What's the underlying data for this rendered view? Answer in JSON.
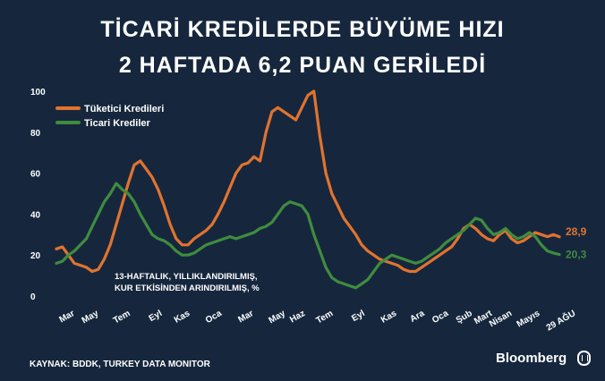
{
  "header": {
    "title_line1": "TİCARİ KREDİLERDE BÜYÜME HIZI",
    "title_line2": "2 HAFTADA 6,2 PUAN GERİLEDİ"
  },
  "footer": {
    "source": "KAYNAK: BDDK, TURKEY DATA MONITOR",
    "brand": "Bloomberg",
    "brand_seal": "HT"
  },
  "colors": {
    "background": "#16273d",
    "consumer": "#e1732e",
    "commercial": "#3f8c3f",
    "text": "#ffffff"
  },
  "chart_data": {
    "type": "line",
    "note": "13-HAFTALIK, YILLIKLANDIRILMIŞ,\nKUR ETKİSİNDEN ARINDIRILMIŞ, %",
    "ylim": [
      0,
      100
    ],
    "yticks": [
      0,
      20,
      40,
      60,
      80,
      100
    ],
    "xticks": [
      {
        "label": "Mar",
        "x": 2
      },
      {
        "label": "May",
        "x": 8
      },
      {
        "label": "Tem",
        "x": 16
      },
      {
        "label": "Eyl",
        "x": 24
      },
      {
        "label": "Kas",
        "x": 31
      },
      {
        "label": "Oca",
        "x": 39
      },
      {
        "label": "Mar",
        "x": 47
      },
      {
        "label": "May",
        "x": 55
      },
      {
        "label": "Haz",
        "x": 60
      },
      {
        "label": "Tem",
        "x": 67
      },
      {
        "label": "Eyl",
        "x": 75
      },
      {
        "label": "Kas",
        "x": 83
      },
      {
        "label": "Ara",
        "x": 90
      },
      {
        "label": "Oca",
        "x": 96
      },
      {
        "label": "Şub",
        "x": 102
      },
      {
        "label": "Mart",
        "x": 107
      },
      {
        "label": "Nisan",
        "x": 112
      },
      {
        "label": "Mayıs",
        "x": 119
      },
      {
        "label": "29 AĞU",
        "x": 128
      }
    ],
    "xlim": [
      0,
      140
    ],
    "series": [
      {
        "name": "Tüketici Kredileri",
        "color": "#e1732e",
        "end_label": "28,9",
        "points": [
          [
            0,
            23
          ],
          [
            1,
            24
          ],
          [
            2,
            20
          ],
          [
            3,
            16
          ],
          [
            4,
            15
          ],
          [
            5,
            14
          ],
          [
            6,
            12
          ],
          [
            7,
            13
          ],
          [
            8,
            18
          ],
          [
            9,
            25
          ],
          [
            10,
            35
          ],
          [
            11,
            45
          ],
          [
            12,
            55
          ],
          [
            13,
            64
          ],
          [
            14,
            66
          ],
          [
            15,
            62
          ],
          [
            16,
            58
          ],
          [
            17,
            52
          ],
          [
            18,
            44
          ],
          [
            19,
            35
          ],
          [
            20,
            28
          ],
          [
            21,
            25
          ],
          [
            22,
            25
          ],
          [
            23,
            28
          ],
          [
            24,
            30
          ],
          [
            25,
            32
          ],
          [
            26,
            35
          ],
          [
            27,
            40
          ],
          [
            28,
            46
          ],
          [
            29,
            53
          ],
          [
            30,
            60
          ],
          [
            31,
            64
          ],
          [
            32,
            65
          ],
          [
            33,
            68
          ],
          [
            34,
            66
          ],
          [
            35,
            80
          ],
          [
            36,
            90
          ],
          [
            37,
            92
          ],
          [
            38,
            90
          ],
          [
            39,
            88
          ],
          [
            40,
            86
          ],
          [
            41,
            92
          ],
          [
            42,
            98
          ],
          [
            43,
            100
          ],
          [
            44,
            78
          ],
          [
            45,
            60
          ],
          [
            46,
            50
          ],
          [
            47,
            44
          ],
          [
            48,
            38
          ],
          [
            49,
            34
          ],
          [
            50,
            30
          ],
          [
            51,
            25
          ],
          [
            52,
            22
          ],
          [
            53,
            20
          ],
          [
            54,
            18
          ],
          [
            55,
            17
          ],
          [
            56,
            16
          ],
          [
            57,
            15
          ],
          [
            58,
            13
          ],
          [
            59,
            12
          ],
          [
            60,
            12
          ],
          [
            61,
            14
          ],
          [
            62,
            16
          ],
          [
            63,
            18
          ],
          [
            64,
            20
          ],
          [
            65,
            22
          ],
          [
            66,
            24
          ],
          [
            67,
            28
          ],
          [
            68,
            33
          ],
          [
            69,
            35
          ],
          [
            70,
            33
          ],
          [
            71,
            30
          ],
          [
            72,
            28
          ],
          [
            73,
            27
          ],
          [
            74,
            30
          ],
          [
            75,
            32
          ],
          [
            76,
            28
          ],
          [
            77,
            26
          ],
          [
            78,
            27
          ],
          [
            79,
            29
          ],
          [
            80,
            31
          ],
          [
            81,
            30
          ],
          [
            82,
            29
          ],
          [
            83,
            30
          ],
          [
            84,
            28.9
          ]
        ]
      },
      {
        "name": "Ticari Krediler",
        "color": "#3f8c3f",
        "end_label": "20,3",
        "points": [
          [
            0,
            16
          ],
          [
            1,
            17
          ],
          [
            2,
            20
          ],
          [
            3,
            22
          ],
          [
            4,
            25
          ],
          [
            5,
            28
          ],
          [
            6,
            34
          ],
          [
            7,
            40
          ],
          [
            8,
            46
          ],
          [
            9,
            50
          ],
          [
            10,
            55
          ],
          [
            11,
            52
          ],
          [
            12,
            50
          ],
          [
            13,
            46
          ],
          [
            14,
            40
          ],
          [
            15,
            35
          ],
          [
            16,
            30
          ],
          [
            17,
            28
          ],
          [
            18,
            27
          ],
          [
            19,
            25
          ],
          [
            20,
            22
          ],
          [
            21,
            20
          ],
          [
            22,
            20
          ],
          [
            23,
            21
          ],
          [
            24,
            23
          ],
          [
            25,
            25
          ],
          [
            26,
            26
          ],
          [
            27,
            27
          ],
          [
            28,
            28
          ],
          [
            29,
            29
          ],
          [
            30,
            28
          ],
          [
            31,
            29
          ],
          [
            32,
            30
          ],
          [
            33,
            31
          ],
          [
            34,
            33
          ],
          [
            35,
            34
          ],
          [
            36,
            36
          ],
          [
            37,
            40
          ],
          [
            38,
            44
          ],
          [
            39,
            46
          ],
          [
            40,
            45
          ],
          [
            41,
            44
          ],
          [
            42,
            40
          ],
          [
            43,
            30
          ],
          [
            44,
            22
          ],
          [
            45,
            14
          ],
          [
            46,
            9
          ],
          [
            47,
            7
          ],
          [
            48,
            6
          ],
          [
            49,
            5
          ],
          [
            50,
            4
          ],
          [
            51,
            6
          ],
          [
            52,
            8
          ],
          [
            53,
            12
          ],
          [
            54,
            16
          ],
          [
            55,
            18
          ],
          [
            56,
            20
          ],
          [
            57,
            19
          ],
          [
            58,
            18
          ],
          [
            59,
            17
          ],
          [
            60,
            16
          ],
          [
            61,
            17
          ],
          [
            62,
            19
          ],
          [
            63,
            21
          ],
          [
            64,
            23
          ],
          [
            65,
            26
          ],
          [
            66,
            28
          ],
          [
            67,
            30
          ],
          [
            68,
            32
          ],
          [
            69,
            35
          ],
          [
            70,
            38
          ],
          [
            71,
            37
          ],
          [
            72,
            33
          ],
          [
            73,
            30
          ],
          [
            74,
            31
          ],
          [
            75,
            33
          ],
          [
            76,
            30
          ],
          [
            77,
            28
          ],
          [
            78,
            29
          ],
          [
            79,
            31
          ],
          [
            80,
            29
          ],
          [
            81,
            25
          ],
          [
            82,
            22
          ],
          [
            83,
            21
          ],
          [
            84,
            20.3
          ]
        ]
      }
    ]
  }
}
